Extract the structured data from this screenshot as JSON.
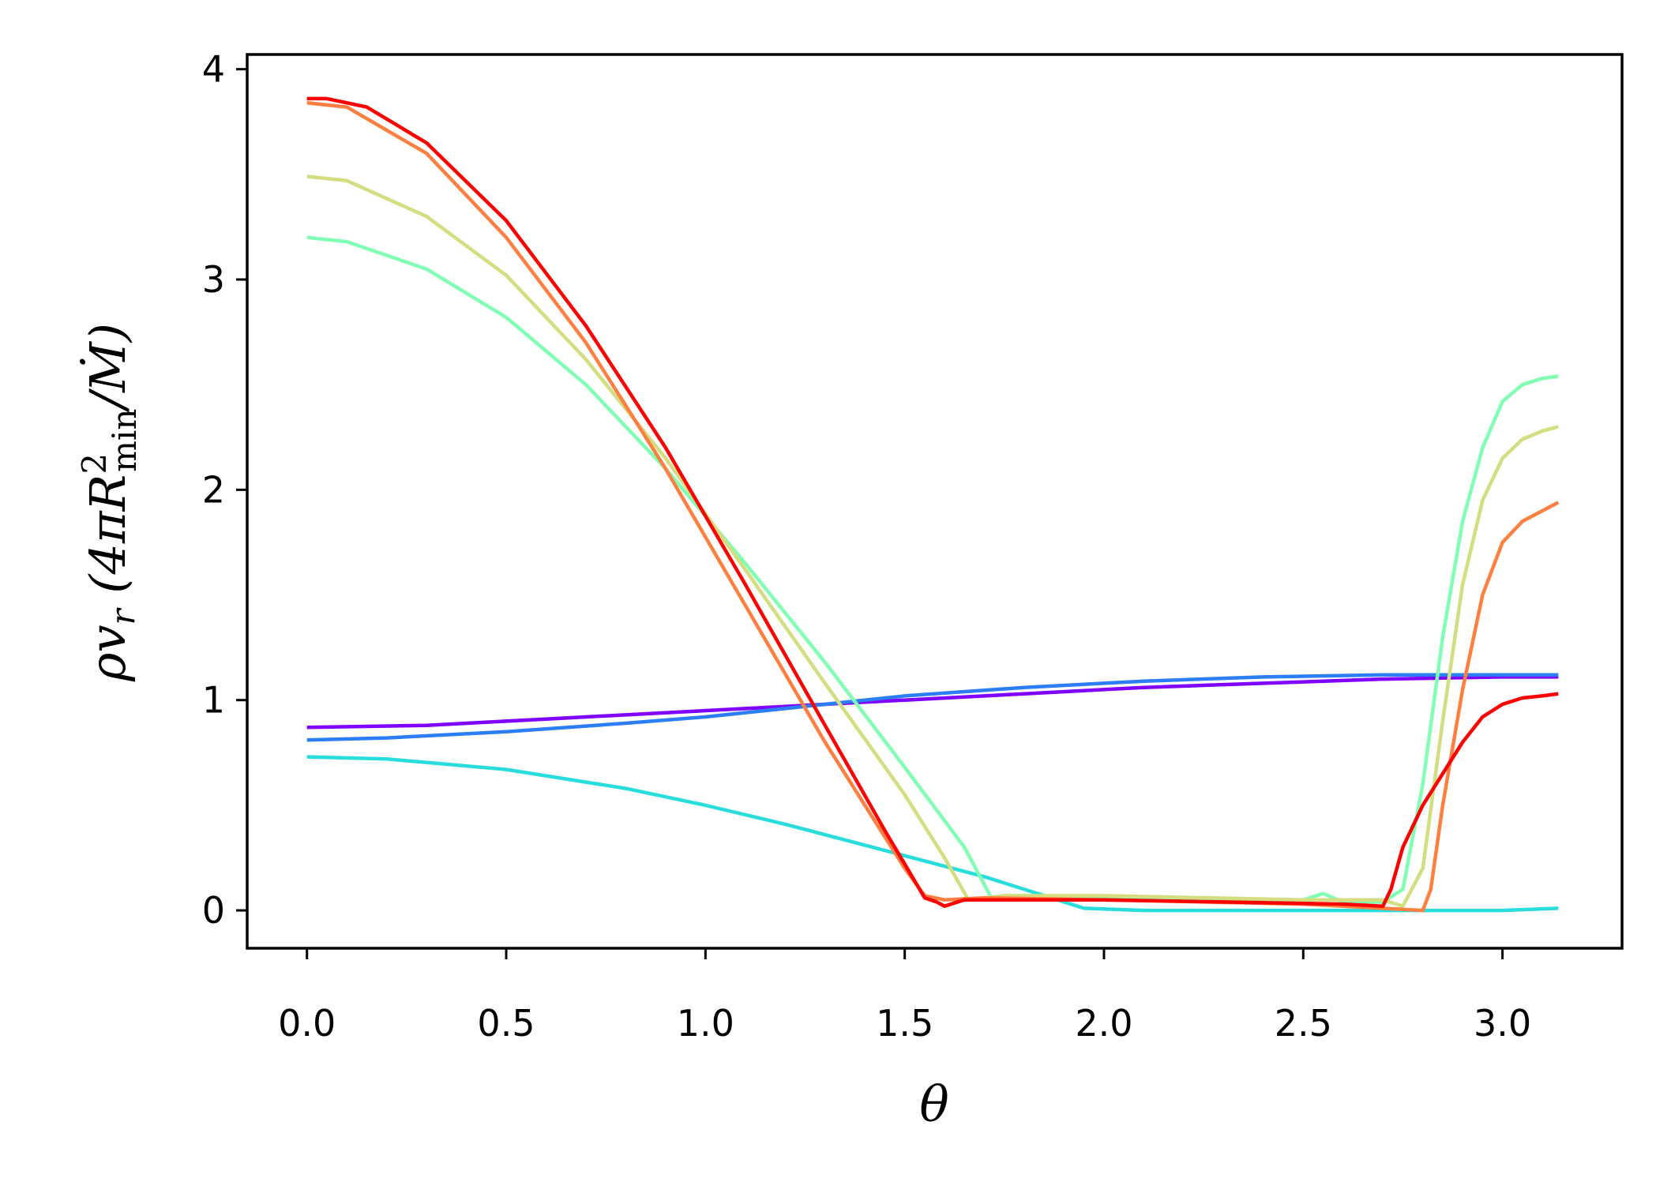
{
  "chart_data": {
    "type": "line",
    "title": "",
    "xlabel": "θ",
    "ylabel": {
      "rho": "ρv",
      "rho_sub": "r",
      "open": " (4πR",
      "sup": "2",
      "sub": "min",
      "mdot": "/Ṁ)"
    },
    "xlim": [
      -0.15,
      3.3
    ],
    "ylim": [
      -0.18,
      4.07
    ],
    "xticks": [
      0.0,
      0.5,
      1.0,
      1.5,
      2.0,
      2.5,
      3.0
    ],
    "xtick_labels": [
      "0.0",
      "0.5",
      "1.0",
      "1.5",
      "2.0",
      "2.5",
      "3.0"
    ],
    "yticks": [
      0,
      1,
      2,
      3,
      4
    ],
    "ytick_labels": [
      "0",
      "1",
      "2",
      "3",
      "4"
    ],
    "grid": false,
    "legend": "none",
    "series": [
      {
        "color": "#8000ff",
        "x": [
          0.0,
          0.3,
          0.6,
          0.9,
          1.2,
          1.5,
          1.8,
          2.1,
          2.4,
          2.7,
          3.0,
          3.14
        ],
        "y": [
          0.87,
          0.88,
          0.91,
          0.94,
          0.97,
          1.0,
          1.03,
          1.06,
          1.08,
          1.1,
          1.11,
          1.11
        ]
      },
      {
        "color": "#2c7ef7",
        "x": [
          0.0,
          0.2,
          0.5,
          0.8,
          1.0,
          1.3,
          1.5,
          1.8,
          2.1,
          2.4,
          2.7,
          3.0,
          3.14
        ],
        "y": [
          0.81,
          0.82,
          0.85,
          0.89,
          0.92,
          0.98,
          1.02,
          1.06,
          1.09,
          1.11,
          1.12,
          1.12,
          1.12
        ]
      },
      {
        "color": "#2adddd",
        "x": [
          0.0,
          0.2,
          0.5,
          0.8,
          1.0,
          1.2,
          1.5,
          1.7,
          1.85,
          1.95,
          2.1,
          2.5,
          3.0,
          3.14
        ],
        "y": [
          0.73,
          0.72,
          0.67,
          0.58,
          0.5,
          0.41,
          0.26,
          0.16,
          0.07,
          0.01,
          0.0,
          0.0,
          0.0,
          0.01
        ]
      },
      {
        "color": "#80ffb4",
        "x": [
          0.0,
          0.1,
          0.3,
          0.5,
          0.7,
          0.9,
          1.1,
          1.3,
          1.5,
          1.65,
          1.72,
          1.8,
          2.0,
          2.3,
          2.5,
          2.55,
          2.6,
          2.7,
          2.75,
          2.8,
          2.85,
          2.9,
          2.95,
          3.0,
          3.05,
          3.1,
          3.14
        ],
        "y": [
          3.2,
          3.18,
          3.05,
          2.82,
          2.5,
          2.1,
          1.65,
          1.18,
          0.68,
          0.3,
          0.05,
          0.06,
          0.06,
          0.05,
          0.05,
          0.08,
          0.04,
          0.04,
          0.1,
          0.6,
          1.3,
          1.85,
          2.2,
          2.42,
          2.5,
          2.53,
          2.54
        ]
      },
      {
        "color": "#d4dd80",
        "x": [
          0.0,
          0.1,
          0.3,
          0.5,
          0.7,
          0.9,
          1.1,
          1.3,
          1.5,
          1.6,
          1.66,
          1.75,
          2.0,
          2.5,
          2.7,
          2.75,
          2.8,
          2.85,
          2.9,
          2.95,
          3.0,
          3.05,
          3.1,
          3.14
        ],
        "y": [
          3.49,
          3.47,
          3.3,
          3.02,
          2.62,
          2.15,
          1.62,
          1.08,
          0.55,
          0.25,
          0.05,
          0.07,
          0.07,
          0.05,
          0.05,
          0.02,
          0.2,
          0.9,
          1.55,
          1.95,
          2.15,
          2.24,
          2.28,
          2.3
        ]
      },
      {
        "color": "#ff7f40",
        "x": [
          0.0,
          0.1,
          0.3,
          0.5,
          0.7,
          0.9,
          1.1,
          1.3,
          1.5,
          1.55,
          1.6,
          1.7,
          2.0,
          2.5,
          2.8,
          2.82,
          2.85,
          2.9,
          2.95,
          3.0,
          3.05,
          3.1,
          3.14
        ],
        "y": [
          3.84,
          3.82,
          3.6,
          3.2,
          2.7,
          2.1,
          1.45,
          0.8,
          0.2,
          0.07,
          0.05,
          0.06,
          0.05,
          0.03,
          0.0,
          0.1,
          0.5,
          1.05,
          1.5,
          1.75,
          1.85,
          1.9,
          1.94
        ]
      },
      {
        "color": "#ff0000",
        "x": [
          0.0,
          0.05,
          0.15,
          0.3,
          0.5,
          0.7,
          0.9,
          1.1,
          1.3,
          1.45,
          1.55,
          1.58,
          1.6,
          1.65,
          1.8,
          2.0,
          2.3,
          2.6,
          2.7,
          2.72,
          2.75,
          2.8,
          2.85,
          2.9,
          2.95,
          3.0,
          3.05,
          3.1,
          3.14
        ],
        "y": [
          3.86,
          3.86,
          3.82,
          3.65,
          3.28,
          2.78,
          2.2,
          1.55,
          0.88,
          0.38,
          0.06,
          0.04,
          0.02,
          0.05,
          0.05,
          0.05,
          0.04,
          0.03,
          0.02,
          0.1,
          0.3,
          0.5,
          0.65,
          0.8,
          0.92,
          0.98,
          1.01,
          1.02,
          1.03
        ]
      }
    ]
  }
}
